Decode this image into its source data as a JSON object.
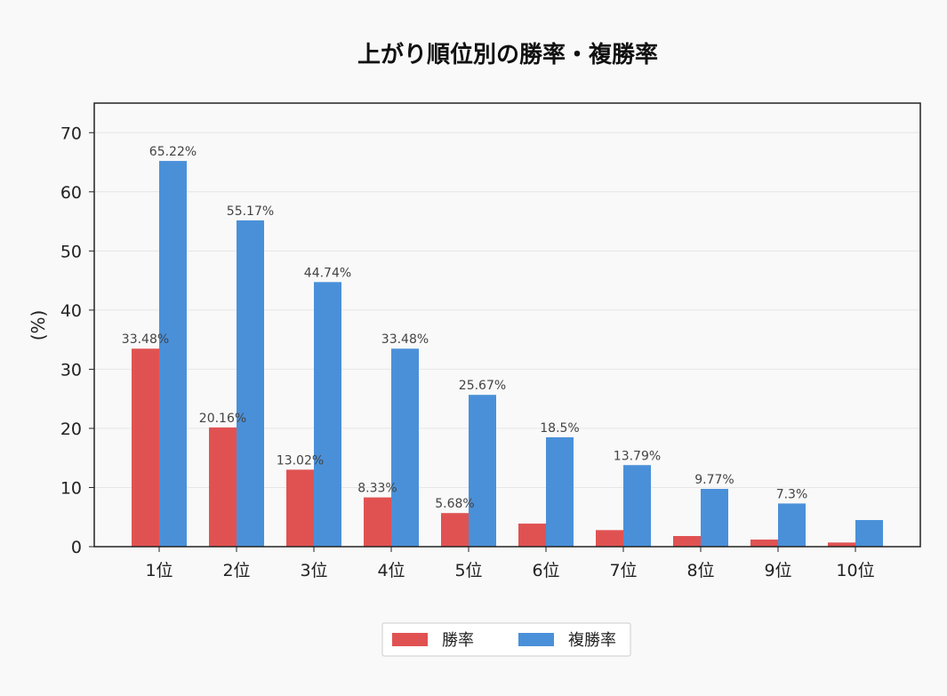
{
  "chart_data": {
    "type": "bar",
    "title": "上がり順位別の勝率・複勝率",
    "xlabel": "",
    "ylabel": "(%)",
    "ylim": [
      0,
      75
    ],
    "yticks": [
      0,
      10,
      20,
      30,
      40,
      50,
      60,
      70
    ],
    "categories": [
      "1位",
      "2位",
      "3位",
      "4位",
      "5位",
      "6位",
      "7位",
      "8位",
      "9位",
      "10位"
    ],
    "series": [
      {
        "name": "勝率",
        "color": "#e05252",
        "values": [
          33.48,
          20.16,
          13.02,
          8.33,
          5.68,
          3.9,
          2.8,
          1.8,
          1.2,
          0.7
        ],
        "labels": [
          "33.48%",
          "20.16%",
          "13.02%",
          "8.33%",
          "5.68%",
          "",
          "",
          "",
          "",
          ""
        ]
      },
      {
        "name": "複勝率",
        "color": "#4a90d9",
        "values": [
          65.22,
          55.17,
          44.74,
          33.48,
          25.67,
          18.5,
          13.79,
          9.77,
          7.3,
          4.5
        ],
        "labels": [
          "65.22%",
          "55.17%",
          "44.74%",
          "33.48%",
          "25.67%",
          "18.5%",
          "13.79%",
          "9.77%",
          "7.3%",
          ""
        ]
      }
    ],
    "grid": true,
    "legend_position": "bottom-center"
  }
}
